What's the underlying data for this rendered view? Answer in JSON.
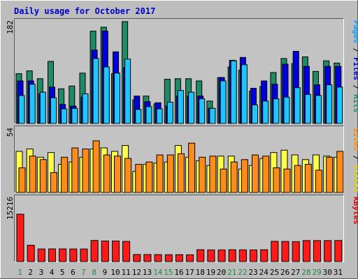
{
  "chart_data": {
    "type": "bar",
    "title": "Daily usage for October 2017",
    "categories": [
      "1",
      "2",
      "3",
      "4",
      "5",
      "6",
      "7",
      "8",
      "9",
      "10",
      "11",
      "12",
      "13",
      "14",
      "15",
      "16",
      "17",
      "18",
      "19",
      "20",
      "21",
      "22",
      "23",
      "24",
      "25",
      "26",
      "27",
      "28",
      "29",
      "30",
      "31"
    ],
    "weekend_days": [
      "1",
      "7",
      "8",
      "14",
      "15",
      "21",
      "22",
      "28",
      "29"
    ],
    "panels": [
      {
        "id": "hits",
        "max_label": "182",
        "ymax": 182,
        "right_label": [
          {
            "text": "Pages",
            "color": "#00a2ff"
          },
          {
            "text": " / ",
            "color": "#000000"
          },
          {
            "text": "Files",
            "color": "#0000d8"
          },
          {
            "text": " / ",
            "color": "#000000"
          },
          {
            "text": "Hits",
            "color": "#1f8f6d"
          }
        ],
        "series": [
          {
            "name": "Hits",
            "color": "#1f8a64",
            "values": [
              89,
              94,
              80,
              111,
              62,
              67,
              90,
              165,
              172,
              89,
              182,
              42,
              49,
              35,
              79,
              80,
              80,
              76,
              40,
              82,
              101,
              95,
              58,
              66,
              91,
              116,
              107,
              119,
              93,
              112,
              108
            ]
          },
          {
            "name": "Files",
            "color": "#0000dd",
            "values": [
              76,
              76,
              53,
              65,
              34,
              31,
              47,
              131,
              165,
              128,
              100,
              49,
              39,
              37,
              31,
              49,
              49,
              49,
              27,
              82,
              113,
              118,
              63,
              76,
              70,
              106,
              129,
              102,
              69,
              102,
              102
            ]
          },
          {
            "name": "Pages",
            "color": "#1ec6ff",
            "values": [
              50,
              70,
              56,
              46,
              26,
              27,
              53,
              116,
              101,
              90,
              115,
              25,
              30,
              26,
              38,
              59,
              56,
              44,
              27,
              76,
              112,
              105,
              33,
              40,
              44,
              47,
              64,
              52,
              50,
              69,
              65
            ]
          }
        ]
      },
      {
        "id": "visits",
        "max_label": "54",
        "ymax": 54,
        "right_label": [
          {
            "text": "Sites",
            "color": "#ff8c00"
          },
          {
            "text": " / ",
            "color": "#000000"
          },
          {
            "text": "Visits",
            "color": "#e6d200"
          }
        ],
        "series": [
          {
            "name": "Visits",
            "color": "#ffff4a",
            "values": [
              35,
              37,
              30,
              34,
              24,
              26,
              30,
              37,
              38,
              35,
              40,
              18,
              24,
              25,
              26,
              40,
              30,
              27,
              23,
              31,
              31,
              20,
              23,
              29,
              34,
              36,
              32,
              28,
              32,
              31,
              30
            ]
          },
          {
            "name": "Sites",
            "color": "#ff8c1a",
            "values": [
              21,
              31,
              28,
              17,
              30,
              38,
              37,
              44,
              32,
              31,
              29,
              24,
              26,
              32,
              32,
              33,
              42,
              30,
              31,
              20,
              26,
              28,
              32,
              31,
              21,
              20,
              23,
              24,
              19,
              30,
              35
            ]
          }
        ]
      },
      {
        "id": "kbytes",
        "max_label": "15216",
        "ymax": 15216,
        "right_label": [
          {
            "text": "KBytes",
            "color": "#e00000"
          }
        ],
        "series": [
          {
            "name": "KBytes",
            "color": "#ff1a1a",
            "values": [
              11346,
              3920,
              3003,
              3025,
              3020,
              3003,
              3005,
              5061,
              4930,
              4930,
              4838,
              1685,
              1686,
              1672,
              1635,
              1652,
              1617,
              2839,
              2792,
              2799,
              2836,
              2808,
              2786,
              2829,
              4845,
              4809,
              4785,
              5033,
              5033,
              5033,
              5043
            ]
          }
        ]
      }
    ]
  }
}
